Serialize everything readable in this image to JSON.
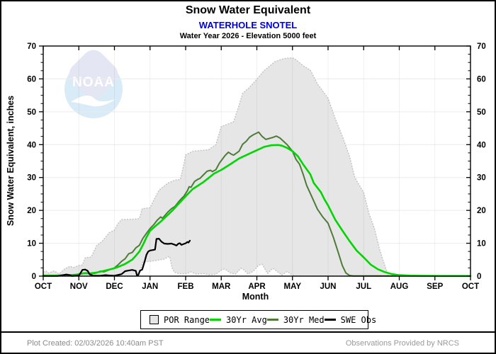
{
  "watermark": {
    "text": "NOAA"
  },
  "footer": {
    "left": "Plot Created: 02/03/2026 10:40am PST",
    "right": "Observations Provided by NRCS"
  },
  "colors": {
    "station_title": "#0000dd",
    "por_fill": "#e6e6e6",
    "por_edge": "#c2c2c2",
    "avg_green": "#00d600",
    "med_green": "#4e7b38",
    "obs_black": "#000000",
    "footer_gray": "#8a8a8a"
  },
  "chart_data": {
    "type": "area+line",
    "title": "Snow Water Equivalent",
    "subtitle": "WATERHOLE SNOTEL",
    "caption": "Water Year 2026 -  Elevation 5000 feet",
    "xlabel": "Month",
    "ylabel": "Snow Water Equivalent, inches",
    "x_unit": "months since Oct 1",
    "x_range": [
      0,
      12
    ],
    "ylim": [
      0,
      70
    ],
    "y_ticks": [
      0,
      10,
      20,
      30,
      40,
      50,
      60,
      70
    ],
    "y_minor_step": 2.5,
    "x_tick_labels": [
      "OCT",
      "NOV",
      "DEC",
      "JAN",
      "FEB",
      "MAR",
      "APR",
      "MAY",
      "JUN",
      "JUL",
      "AUG",
      "SEP",
      "OCT"
    ],
    "grid": true,
    "legend_position": "bottom",
    "legend": [
      {
        "label": "POR Range",
        "type": "box",
        "color": "#e6e6e6"
      },
      {
        "label": "30Yr Avg",
        "type": "line",
        "color": "#00d600"
      },
      {
        "label": "30Yr Med",
        "type": "line",
        "color": "#4e7b38"
      },
      {
        "label": "SWE Obs",
        "type": "line",
        "color": "#000000"
      }
    ],
    "series": [
      {
        "name": "POR Max",
        "role": "envelope-top",
        "color": "#c2c2c2",
        "points": [
          [
            0,
            1.2
          ],
          [
            0.08,
            1.5
          ],
          [
            0.15,
            0.9
          ],
          [
            0.3,
            1.6
          ],
          [
            0.45,
            0.7
          ],
          [
            0.6,
            2.2
          ],
          [
            0.75,
            3.0
          ],
          [
            0.85,
            2.6
          ],
          [
            1.0,
            3.2
          ],
          [
            1.1,
            3.4
          ],
          [
            1.18,
            5.6
          ],
          [
            1.35,
            5.8
          ],
          [
            1.5,
            9.3
          ],
          [
            1.65,
            10.5
          ],
          [
            1.75,
            11.8
          ],
          [
            1.85,
            13.2
          ],
          [
            2.0,
            14.0
          ],
          [
            2.1,
            16.0
          ],
          [
            2.2,
            17.2
          ],
          [
            2.5,
            17.3
          ],
          [
            2.7,
            17.5
          ],
          [
            2.78,
            20.5
          ],
          [
            3.0,
            20.8
          ],
          [
            3.1,
            23.0
          ],
          [
            3.25,
            26.1
          ],
          [
            3.5,
            28.3
          ],
          [
            3.7,
            29.2
          ],
          [
            3.85,
            29.4
          ],
          [
            3.95,
            34.0
          ],
          [
            4.0,
            36.9
          ],
          [
            4.2,
            38.0
          ],
          [
            4.5,
            38.3
          ],
          [
            4.65,
            38.5
          ],
          [
            4.85,
            40.0
          ],
          [
            5.0,
            45.5
          ],
          [
            5.2,
            46.3
          ],
          [
            5.35,
            47.0
          ],
          [
            5.5,
            52.0
          ],
          [
            5.6,
            55.6
          ],
          [
            5.8,
            57.5
          ],
          [
            6.0,
            59.9
          ],
          [
            6.2,
            62.5
          ],
          [
            6.35,
            63.8
          ],
          [
            6.5,
            65.2
          ],
          [
            6.7,
            66.0
          ],
          [
            6.85,
            66.3
          ],
          [
            7.0,
            66.4
          ],
          [
            7.1,
            65.8
          ],
          [
            7.3,
            64.0
          ],
          [
            7.5,
            62.7
          ],
          [
            7.7,
            58.5
          ],
          [
            8.0,
            54.1
          ],
          [
            8.2,
            48.0
          ],
          [
            8.4,
            42.6
          ],
          [
            8.6,
            36.5
          ],
          [
            8.75,
            30.0
          ],
          [
            9.0,
            25.4
          ],
          [
            9.15,
            19.0
          ],
          [
            9.3,
            14.6
          ],
          [
            9.45,
            8.0
          ],
          [
            9.55,
            4.6
          ],
          [
            9.65,
            1.5
          ],
          [
            9.71,
            0
          ]
        ]
      },
      {
        "name": "POR Min",
        "role": "envelope-bottom",
        "color": "#c2c2c2",
        "points": [
          [
            0,
            0
          ],
          [
            2.6,
            0
          ],
          [
            2.7,
            1.0
          ],
          [
            2.8,
            4.3
          ],
          [
            3.0,
            4.5
          ],
          [
            3.2,
            4.8
          ],
          [
            3.4,
            5.2
          ],
          [
            3.5,
            5.8
          ],
          [
            3.55,
            6.0
          ],
          [
            3.62,
            2.5
          ],
          [
            3.68,
            1.2
          ],
          [
            3.8,
            0.8
          ],
          [
            4.0,
            0.7
          ],
          [
            4.15,
            1.3
          ],
          [
            4.3,
            0.6
          ],
          [
            4.5,
            0.8
          ],
          [
            4.65,
            0.4
          ],
          [
            4.85,
            0.6
          ],
          [
            5.0,
            1.8
          ],
          [
            5.1,
            2.2
          ],
          [
            5.25,
            1.0
          ],
          [
            5.4,
            0.6
          ],
          [
            5.55,
            2.4
          ],
          [
            5.65,
            1.8
          ],
          [
            5.75,
            0.6
          ],
          [
            5.9,
            1.5
          ],
          [
            6.05,
            3.3
          ],
          [
            6.15,
            3.6
          ],
          [
            6.3,
            0.8
          ],
          [
            6.45,
            2.4
          ],
          [
            6.55,
            1.6
          ],
          [
            6.7,
            0.3
          ],
          [
            6.85,
            1.4
          ],
          [
            7.0,
            0.3
          ],
          [
            7.1,
            0
          ],
          [
            9.71,
            0
          ]
        ]
      },
      {
        "name": "30Yr Med",
        "color": "#4e7b38",
        "width": 2,
        "points": [
          [
            0,
            0.1
          ],
          [
            0.5,
            0.15
          ],
          [
            0.9,
            0.3
          ],
          [
            1.05,
            0.6
          ],
          [
            1.2,
            1.0
          ],
          [
            1.35,
            0.7
          ],
          [
            1.5,
            1.0
          ],
          [
            1.6,
            1.5
          ],
          [
            1.7,
            1.3
          ],
          [
            1.85,
            1.9
          ],
          [
            2.0,
            2.5
          ],
          [
            2.1,
            3.4
          ],
          [
            2.2,
            4.5
          ],
          [
            2.3,
            5.3
          ],
          [
            2.4,
            6.8
          ],
          [
            2.5,
            7.2
          ],
          [
            2.6,
            8.6
          ],
          [
            2.7,
            9.4
          ],
          [
            2.8,
            11.5
          ],
          [
            2.9,
            13.0
          ],
          [
            3.0,
            14.5
          ],
          [
            3.1,
            15.6
          ],
          [
            3.2,
            17.0
          ],
          [
            3.3,
            18.0
          ],
          [
            3.35,
            17.6
          ],
          [
            3.5,
            19.5
          ],
          [
            3.6,
            20.5
          ],
          [
            3.7,
            21.2
          ],
          [
            3.8,
            22.6
          ],
          [
            3.9,
            23.8
          ],
          [
            3.95,
            24.3
          ],
          [
            4.05,
            26.0
          ],
          [
            4.1,
            27.2
          ],
          [
            4.15,
            27.0
          ],
          [
            4.25,
            28.8
          ],
          [
            4.35,
            29.5
          ],
          [
            4.4,
            29.7
          ],
          [
            4.5,
            30.8
          ],
          [
            4.6,
            31.9
          ],
          [
            4.7,
            32.2
          ],
          [
            4.75,
            31.8
          ],
          [
            4.85,
            32.4
          ],
          [
            4.95,
            34.4
          ],
          [
            5.1,
            36.6
          ],
          [
            5.2,
            37.7
          ],
          [
            5.3,
            37.0
          ],
          [
            5.35,
            36.8
          ],
          [
            5.5,
            38.0
          ],
          [
            5.6,
            40.1
          ],
          [
            5.7,
            41.0
          ],
          [
            5.8,
            42.3
          ],
          [
            5.9,
            43.0
          ],
          [
            6.05,
            43.8
          ],
          [
            6.15,
            42.5
          ],
          [
            6.25,
            41.6
          ],
          [
            6.35,
            41.9
          ],
          [
            6.45,
            42.2
          ],
          [
            6.55,
            42.6
          ],
          [
            6.65,
            42.0
          ],
          [
            6.75,
            41.0
          ],
          [
            6.85,
            40.0
          ],
          [
            7.0,
            38.0
          ],
          [
            7.1,
            35.5
          ],
          [
            7.2,
            34.0
          ],
          [
            7.3,
            31.0
          ],
          [
            7.4,
            27.6
          ],
          [
            7.55,
            24.0
          ],
          [
            7.7,
            20.4
          ],
          [
            7.85,
            18.0
          ],
          [
            8.0,
            16.1
          ],
          [
            8.15,
            11.8
          ],
          [
            8.3,
            6.7
          ],
          [
            8.4,
            3.2
          ],
          [
            8.5,
            1.0
          ],
          [
            8.6,
            0.2
          ],
          [
            8.7,
            0.05
          ],
          [
            12,
            0.05
          ]
        ]
      },
      {
        "name": "30Yr Avg",
        "color": "#00d600",
        "width": 2.6,
        "points": [
          [
            0,
            0.15
          ],
          [
            0.3,
            0.15
          ],
          [
            0.5,
            0.2
          ],
          [
            0.7,
            0.25
          ],
          [
            0.9,
            0.4
          ],
          [
            1.05,
            0.7
          ],
          [
            1.15,
            0.9
          ],
          [
            1.3,
            0.8
          ],
          [
            1.5,
            1.1
          ],
          [
            1.7,
            1.6
          ],
          [
            1.85,
            2.0
          ],
          [
            2.0,
            2.4
          ],
          [
            2.15,
            3.0
          ],
          [
            2.3,
            3.7
          ],
          [
            2.5,
            5.0
          ],
          [
            2.6,
            6.2
          ],
          [
            2.7,
            7.5
          ],
          [
            2.8,
            9.5
          ],
          [
            2.9,
            11.8
          ],
          [
            3.0,
            13.8
          ],
          [
            3.15,
            15.2
          ],
          [
            3.3,
            16.6
          ],
          [
            3.5,
            18.6
          ],
          [
            3.65,
            20.2
          ],
          [
            3.8,
            22.0
          ],
          [
            4.0,
            24.3
          ],
          [
            4.2,
            26.5
          ],
          [
            4.5,
            28.6
          ],
          [
            4.8,
            31.2
          ],
          [
            5.0,
            32.3
          ],
          [
            5.25,
            34.0
          ],
          [
            5.5,
            35.8
          ],
          [
            5.8,
            37.3
          ],
          [
            6.0,
            38.3
          ],
          [
            6.2,
            39.3
          ],
          [
            6.4,
            39.8
          ],
          [
            6.6,
            39.9
          ],
          [
            6.7,
            39.7
          ],
          [
            6.85,
            39.0
          ],
          [
            7.0,
            38.0
          ],
          [
            7.15,
            36.5
          ],
          [
            7.3,
            34.0
          ],
          [
            7.5,
            31.0
          ],
          [
            7.6,
            28.3
          ],
          [
            7.8,
            25.5
          ],
          [
            7.9,
            23.3
          ],
          [
            8.0,
            21.5
          ],
          [
            8.2,
            17.2
          ],
          [
            8.4,
            13.9
          ],
          [
            8.6,
            10.7
          ],
          [
            8.8,
            7.8
          ],
          [
            9.0,
            5.7
          ],
          [
            9.2,
            3.5
          ],
          [
            9.4,
            2.1
          ],
          [
            9.6,
            1.2
          ],
          [
            9.8,
            0.6
          ],
          [
            10.0,
            0.3
          ],
          [
            10.3,
            0.15
          ],
          [
            10.6,
            0.1
          ],
          [
            11.2,
            0.05
          ],
          [
            12,
            0.05
          ]
        ]
      },
      {
        "name": "SWE Obs",
        "color": "#000000",
        "width": 2.2,
        "points": [
          [
            0,
            0.05
          ],
          [
            0.4,
            0.05
          ],
          [
            0.55,
            0.3
          ],
          [
            0.65,
            0.5
          ],
          [
            0.75,
            0.3
          ],
          [
            0.8,
            0.05
          ],
          [
            1.0,
            0.2
          ],
          [
            1.05,
            1.0
          ],
          [
            1.1,
            1.9
          ],
          [
            1.18,
            2.0
          ],
          [
            1.25,
            1.6
          ],
          [
            1.3,
            0.6
          ],
          [
            1.4,
            0.1
          ],
          [
            1.6,
            0.1
          ],
          [
            1.75,
            0.3
          ],
          [
            1.85,
            0.2
          ],
          [
            2.0,
            0.1
          ],
          [
            2.2,
            0.6
          ],
          [
            2.3,
            1.5
          ],
          [
            2.4,
            1.7
          ],
          [
            2.5,
            1.9
          ],
          [
            2.6,
            1.6
          ],
          [
            2.63,
            0.3
          ],
          [
            2.66,
            0.1
          ],
          [
            2.72,
            1.7
          ],
          [
            2.78,
            2.0
          ],
          [
            2.85,
            4.5
          ],
          [
            2.9,
            6.5
          ],
          [
            2.95,
            7.5
          ],
          [
            3.0,
            7.8
          ],
          [
            3.1,
            8.0
          ],
          [
            3.14,
            8.1
          ],
          [
            3.18,
            11.3
          ],
          [
            3.25,
            11.4
          ],
          [
            3.32,
            10.5
          ],
          [
            3.4,
            9.9
          ],
          [
            3.5,
            9.8
          ],
          [
            3.6,
            9.9
          ],
          [
            3.68,
            9.6
          ],
          [
            3.74,
            9.3
          ],
          [
            3.8,
            9.9
          ],
          [
            3.84,
            10.0
          ],
          [
            3.88,
            9.5
          ],
          [
            3.95,
            9.8
          ],
          [
            4.0,
            10.0
          ],
          [
            4.05,
            10.4
          ],
          [
            4.08,
            10.2
          ],
          [
            4.12,
            10.8
          ]
        ]
      }
    ]
  }
}
